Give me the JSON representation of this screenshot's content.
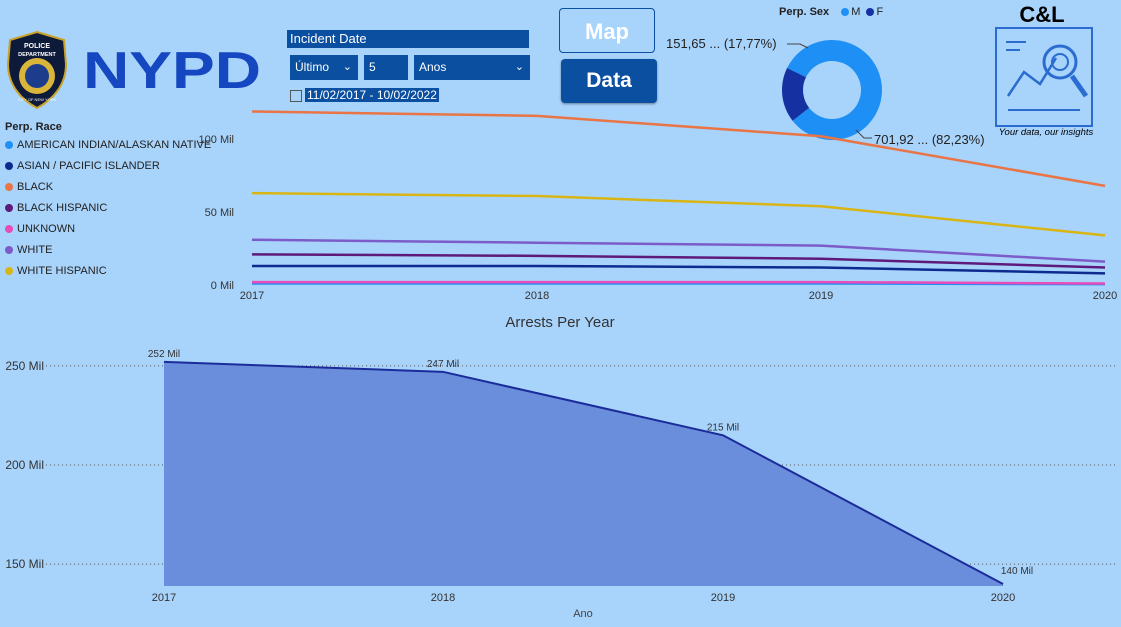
{
  "header": {
    "date_filter": {
      "label": "Incident Date",
      "relative": "Último",
      "count": "5",
      "unit": "Anos",
      "range": "11/02/2017 - 10/02/2022"
    },
    "buttons": {
      "map": "Map",
      "data": "Data"
    },
    "nypd_text": "NYPD",
    "badge": {
      "line1": "POLICE",
      "line2": "DEPARTMENT",
      "bottom": "CITY OF NEW YORK"
    },
    "cl_logo": {
      "title": "C&L",
      "tagline": "Your data, our insights"
    }
  },
  "sex_legend": {
    "title": "Perp. Sex",
    "items": [
      {
        "label": "M",
        "color": "#1e90f5"
      },
      {
        "label": "F",
        "color": "#1530a0"
      }
    ]
  },
  "donut": {
    "label_f": "151,65 ... (17,77%)",
    "label_m": "701,92 ... (82,23%)"
  },
  "race_legend": {
    "title": "Perp. Race",
    "items": [
      {
        "label": "AMERICAN INDIAN/ALASKAN NATIVE",
        "color": "#1e90f5"
      },
      {
        "label": "ASIAN / PACIFIC ISLANDER",
        "color": "#0d2b8f"
      },
      {
        "label": "BLACK",
        "color": "#e97546"
      },
      {
        "label": "BLACK HISPANIC",
        "color": "#5e1a7a"
      },
      {
        "label": "UNKNOWN",
        "color": "#e94bb8"
      },
      {
        "label": "WHITE",
        "color": "#7b5cc8"
      },
      {
        "label": "WHITE HISPANIC",
        "color": "#d8b514"
      }
    ]
  },
  "chart_data": [
    {
      "type": "line",
      "x": [
        "2017",
        "2018",
        "2019",
        "2020"
      ],
      "yticks": [
        "0 Mil",
        "50 Mil",
        "100 Mil"
      ],
      "ylim": [
        0,
        120
      ],
      "series": [
        {
          "name": "AMERICAN INDIAN/ALASKAN NATIVE",
          "color": "#1e90f5",
          "values": [
            1,
            1,
            1,
            0.6
          ]
        },
        {
          "name": "ASIAN / PACIFIC ISLANDER",
          "color": "#0d2b8f",
          "values": [
            13,
            13,
            12,
            8
          ]
        },
        {
          "name": "BLACK",
          "color": "#e97546",
          "values": [
            119,
            116,
            102,
            68
          ]
        },
        {
          "name": "BLACK HISPANIC",
          "color": "#5e1a7a",
          "values": [
            21,
            20,
            18,
            12
          ]
        },
        {
          "name": "UNKNOWN",
          "color": "#e94bb8",
          "values": [
            2,
            2,
            2,
            1
          ]
        },
        {
          "name": "WHITE",
          "color": "#7b5cc8",
          "values": [
            31,
            29,
            27,
            16
          ]
        },
        {
          "name": "WHITE HISPANIC",
          "color": "#d8b514",
          "values": [
            63,
            61,
            54,
            34
          ]
        }
      ]
    },
    {
      "type": "area",
      "title": "Arrests Per Year",
      "xlabel": "Ano",
      "x": [
        "2017",
        "2018",
        "2019",
        "2020"
      ],
      "values": [
        252,
        247,
        215,
        140
      ],
      "data_labels": [
        "252 Mil",
        "247 Mil",
        "215 Mil",
        "140 Mil"
      ],
      "yticks": [
        {
          "v": 150,
          "label": "150 Mil"
        },
        {
          "v": 200,
          "label": "200 Mil"
        },
        {
          "v": 250,
          "label": "250 Mil"
        }
      ],
      "ylim": [
        139,
        257
      ],
      "fill": "#6a8edb",
      "stroke": "#1a2c9a"
    }
  ],
  "pie_data": {
    "type": "pie",
    "labels": [
      "M",
      "F"
    ],
    "values": [
      701.92,
      151.65
    ],
    "colors": [
      "#1e90f5",
      "#1530a0"
    ]
  }
}
